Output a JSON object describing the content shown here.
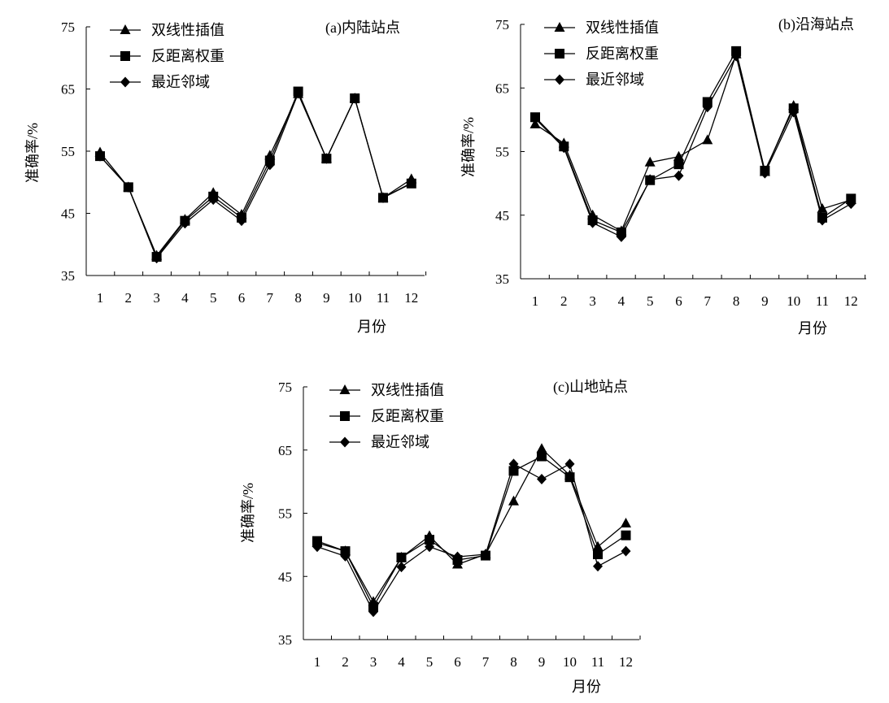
{
  "legend": [
    "双线性插值",
    "反距离权重",
    "最近邻域"
  ],
  "colors": {
    "line": "#000000",
    "axis": "#000000"
  },
  "chart_data": [
    {
      "type": "line",
      "title": "(a)内陆站点",
      "xlabel": "月份",
      "ylabel": "准确率/%",
      "ylim": [
        35,
        75
      ],
      "yticks": [
        35,
        45,
        55,
        65,
        75
      ],
      "categories": [
        "1",
        "2",
        "3",
        "4",
        "5",
        "6",
        "7",
        "8",
        "9",
        "10",
        "11",
        "12"
      ],
      "series": [
        {
          "name": "双线性插值",
          "marker": "triangle",
          "values": [
            54.8,
            49.2,
            38.2,
            44.0,
            48.3,
            44.8,
            54.3,
            64.2,
            53.8,
            63.5,
            47.5,
            50.5
          ]
        },
        {
          "name": "反距离权重",
          "marker": "square",
          "values": [
            54.2,
            49.2,
            38.0,
            43.8,
            47.7,
            44.3,
            53.5,
            64.6,
            53.8,
            63.5,
            47.5,
            49.8
          ]
        },
        {
          "name": "最近邻域",
          "marker": "diamond",
          "values": [
            54.2,
            49.2,
            37.8,
            43.4,
            47.2,
            43.8,
            52.8,
            64.3,
            53.8,
            63.5,
            47.5,
            49.9
          ]
        }
      ]
    },
    {
      "type": "line",
      "title": "(b)沿海站点",
      "xlabel": "月份",
      "ylabel": "准确率/%",
      "ylim": [
        35,
        75
      ],
      "yticks": [
        35,
        45,
        55,
        65,
        75
      ],
      "categories": [
        "1",
        "2",
        "3",
        "4",
        "5",
        "6",
        "7",
        "8",
        "9",
        "10",
        "11",
        "12"
      ],
      "series": [
        {
          "name": "双线性插值",
          "marker": "triangle",
          "values": [
            59.3,
            56.3,
            45.0,
            42.5,
            53.3,
            54.2,
            56.8,
            70.3,
            51.8,
            62.2,
            46.0,
            47.4
          ]
        },
        {
          "name": "反距离权重",
          "marker": "square",
          "values": [
            60.4,
            55.8,
            44.2,
            42.3,
            50.5,
            53.0,
            62.8,
            70.8,
            52.0,
            61.8,
            44.6,
            47.6
          ]
        },
        {
          "name": "最近邻域",
          "marker": "diamond",
          "values": [
            60.2,
            55.6,
            43.8,
            41.6,
            50.6,
            51.2,
            62.0,
            70.0,
            51.6,
            61.2,
            44.2,
            46.8
          ]
        }
      ]
    },
    {
      "type": "line",
      "title": "(c)山地站点",
      "xlabel": "月份",
      "ylabel": "准确率/%",
      "ylim": [
        35,
        75
      ],
      "yticks": [
        35,
        45,
        55,
        65,
        75
      ],
      "categories": [
        "1",
        "2",
        "3",
        "4",
        "5",
        "6",
        "7",
        "8",
        "9",
        "10",
        "11",
        "12"
      ],
      "series": [
        {
          "name": "双线性插值",
          "marker": "triangle",
          "values": [
            50.3,
            49.0,
            41.0,
            48.0,
            51.4,
            46.9,
            48.5,
            56.9,
            65.2,
            61.0,
            49.7,
            53.4
          ]
        },
        {
          "name": "反距离权重",
          "marker": "square",
          "values": [
            50.6,
            49.0,
            40.2,
            48.0,
            50.8,
            47.6,
            48.3,
            61.7,
            64.0,
            60.7,
            48.5,
            51.5
          ]
        },
        {
          "name": "最近邻域",
          "marker": "diamond",
          "values": [
            49.7,
            48.2,
            39.4,
            46.5,
            49.7,
            48.1,
            48.5,
            62.8,
            60.4,
            62.8,
            46.6,
            49.0
          ]
        }
      ]
    }
  ]
}
